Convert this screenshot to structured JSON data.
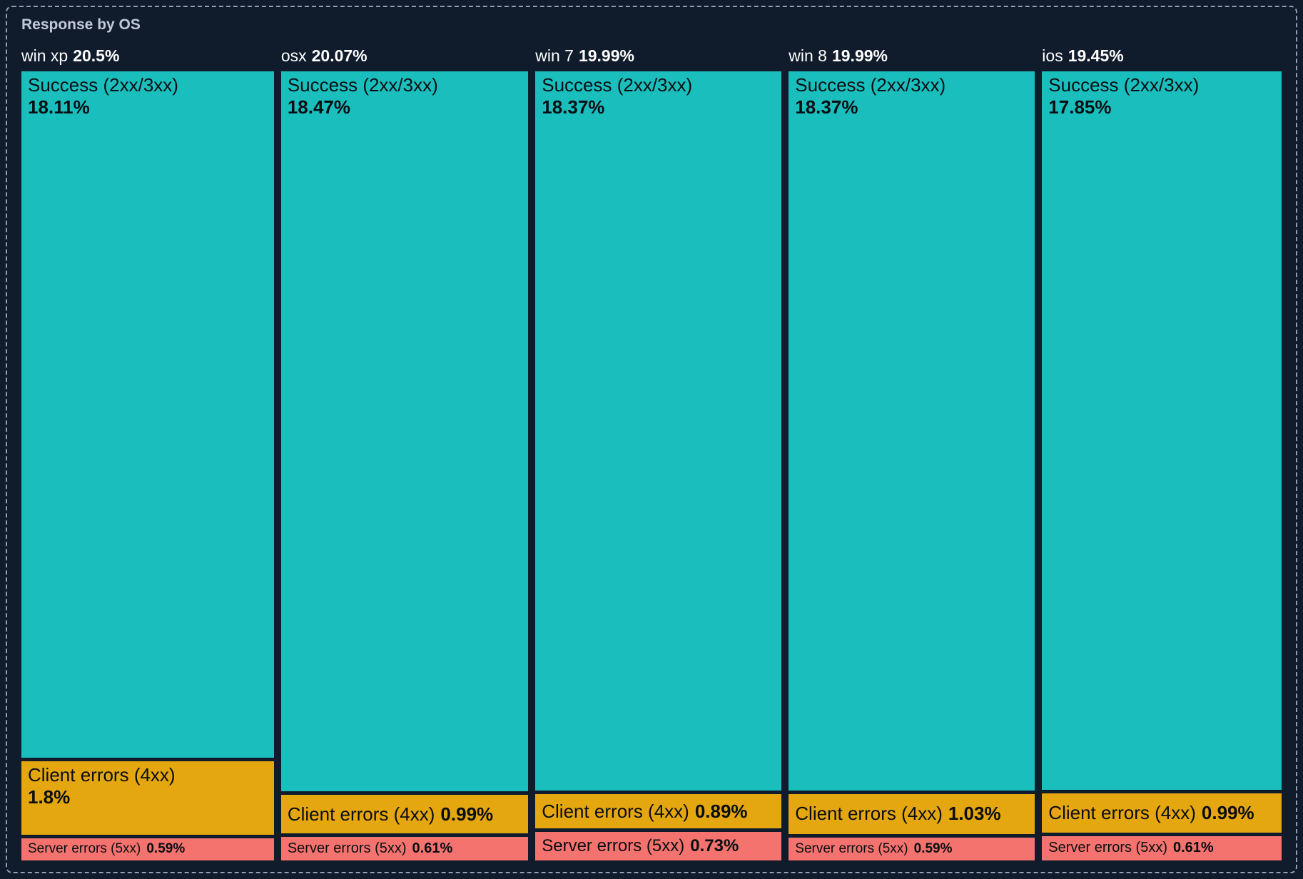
{
  "panel": {
    "title": "Response by OS",
    "colors": {
      "background": "#101b2c",
      "border_dash": "#91a0b6",
      "title_text": "#c2c9d6",
      "header_text": "#ffffff",
      "cell_text": "#0a0d12",
      "success": "#1abfbd",
      "client": "#e5a70f",
      "server": "#f4736e"
    }
  },
  "chart_data": {
    "type": "treemap",
    "title": "Response by OS",
    "layout": "one column per OS; column width proportional to OS total; segment heights normalized within each column",
    "legend": "none",
    "unit": "percent of all responses",
    "groups": [
      {
        "os": "win xp",
        "total_pct": 20.5,
        "total_display": "20.5%",
        "segments": [
          {
            "kind": "success",
            "label": "Success (2xx/3xx)",
            "pct": 18.11,
            "display": "18.11%"
          },
          {
            "kind": "client",
            "label": "Client errors (4xx)",
            "pct": 1.8,
            "display": "1.8%"
          },
          {
            "kind": "server",
            "label": "Server errors (5xx)",
            "pct": 0.59,
            "display": "0.59%"
          }
        ]
      },
      {
        "os": "osx",
        "total_pct": 20.07,
        "total_display": "20.07%",
        "segments": [
          {
            "kind": "success",
            "label": "Success (2xx/3xx)",
            "pct": 18.47,
            "display": "18.47%"
          },
          {
            "kind": "client",
            "label": "Client errors (4xx)",
            "pct": 0.99,
            "display": "0.99%"
          },
          {
            "kind": "server",
            "label": "Server errors (5xx)",
            "pct": 0.61,
            "display": "0.61%"
          }
        ]
      },
      {
        "os": "win 7",
        "total_pct": 19.99,
        "total_display": "19.99%",
        "segments": [
          {
            "kind": "success",
            "label": "Success (2xx/3xx)",
            "pct": 18.37,
            "display": "18.37%"
          },
          {
            "kind": "client",
            "label": "Client errors (4xx)",
            "pct": 0.89,
            "display": "0.89%"
          },
          {
            "kind": "server",
            "label": "Server errors (5xx)",
            "pct": 0.73,
            "display": "0.73%"
          }
        ]
      },
      {
        "os": "win 8",
        "total_pct": 19.99,
        "total_display": "19.99%",
        "segments": [
          {
            "kind": "success",
            "label": "Success (2xx/3xx)",
            "pct": 18.37,
            "display": "18.37%"
          },
          {
            "kind": "client",
            "label": "Client errors (4xx)",
            "pct": 1.03,
            "display": "1.03%"
          },
          {
            "kind": "server",
            "label": "Server errors (5xx)",
            "pct": 0.59,
            "display": "0.59%"
          }
        ]
      },
      {
        "os": "ios",
        "total_pct": 19.45,
        "total_display": "19.45%",
        "segments": [
          {
            "kind": "success",
            "label": "Success (2xx/3xx)",
            "pct": 17.85,
            "display": "17.85%"
          },
          {
            "kind": "client",
            "label": "Client errors (4xx)",
            "pct": 0.99,
            "display": "0.99%"
          },
          {
            "kind": "server",
            "label": "Server errors (5xx)",
            "pct": 0.61,
            "display": "0.61%"
          }
        ]
      }
    ]
  }
}
